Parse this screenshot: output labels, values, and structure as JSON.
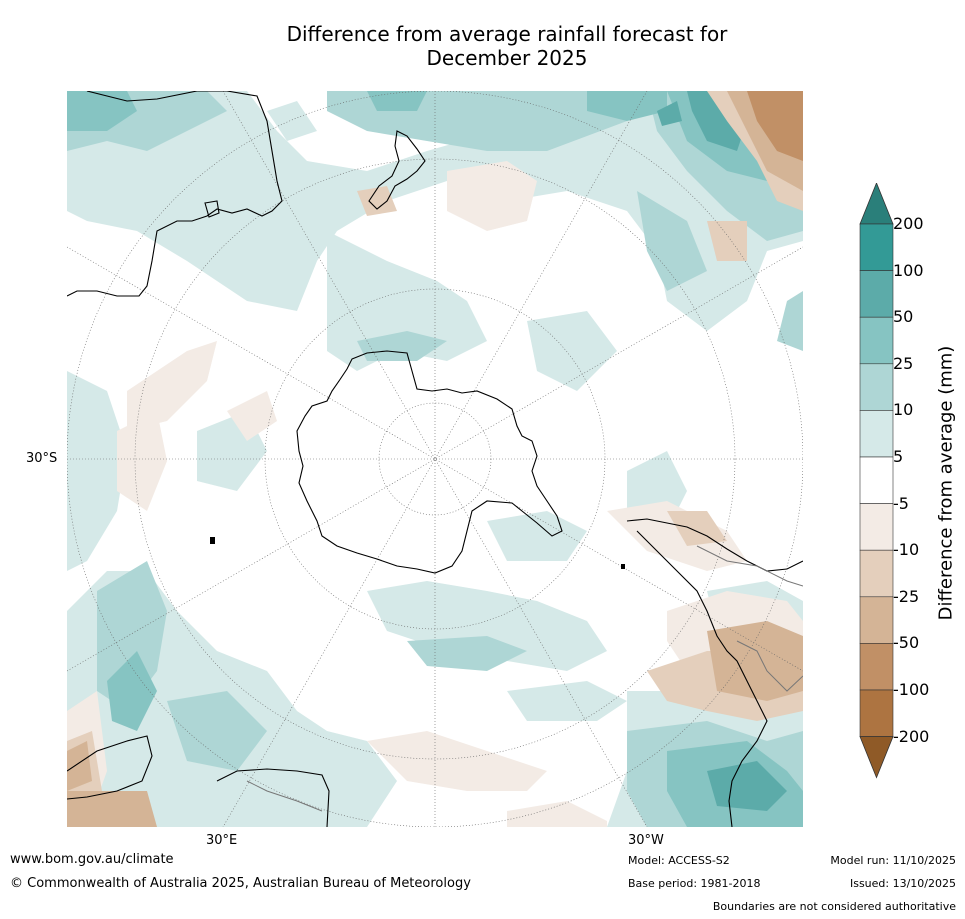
{
  "title": {
    "line1": "Difference from average rainfall forecast for",
    "line2": "December 2025"
  },
  "map": {
    "projection": "south-polar-stereographic",
    "lat_label": "30°S",
    "lon_labels": [
      "30°E",
      "30°W"
    ]
  },
  "colorbar": {
    "title": "Difference from average (mm)",
    "labels": [
      "200",
      "100",
      "50",
      "25",
      "10",
      "5",
      "-5",
      "-10",
      "-25",
      "-50",
      "-100",
      "-200"
    ],
    "colors": {
      "gt200": "#2a7f7a",
      "c100_200": "#339a96",
      "c50_100": "#5caba9",
      "c25_50": "#86c4c2",
      "c10_25": "#aed6d5",
      "c5_10": "#d5e9e8",
      "neutral": "#ffffff",
      "m5_10": "#f3ebe5",
      "m10_25": "#e4cfbc",
      "m25_50": "#d4b496",
      "m50_100": "#c19066",
      "m100_200": "#ad7441",
      "lt200": "#8f5a27"
    }
  },
  "footer": {
    "website": "www.bom.gov.au/climate",
    "copyright": "© Commonwealth of Australia 2025, Australian Bureau of Meteorology",
    "model": "Model: ACCESS-S2",
    "base_period": "Base period: 1981-2018",
    "model_run": "Model run: 11/10/2025",
    "issued": "Issued: 13/10/2025",
    "disclaimer": "Boundaries are not considered authoritative"
  }
}
